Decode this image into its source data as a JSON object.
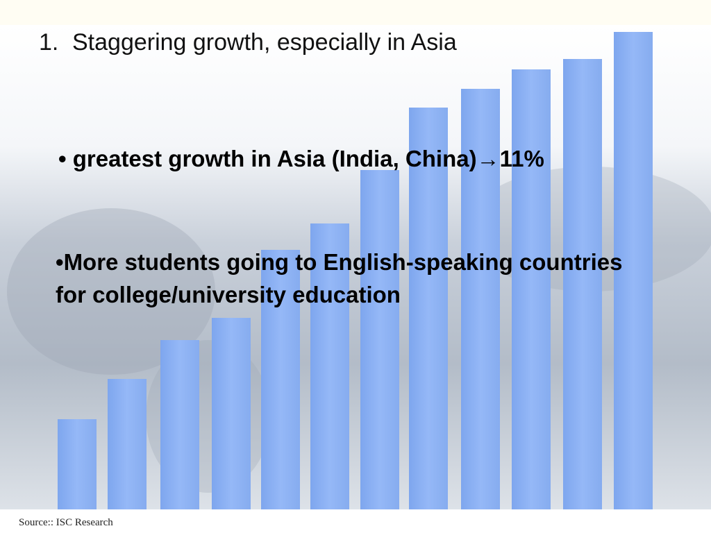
{
  "slide": {
    "title": {
      "number": "1.",
      "text": "Staggering growth, especially in Asia"
    },
    "bullets": [
      {
        "marker": "•",
        "text": "greatest growth in Asia (India, China)→11%"
      },
      {
        "marker": "•",
        "text": "More students going to English-speaking countries for college/university education"
      }
    ],
    "source": "Source:: ISC Research"
  }
}
